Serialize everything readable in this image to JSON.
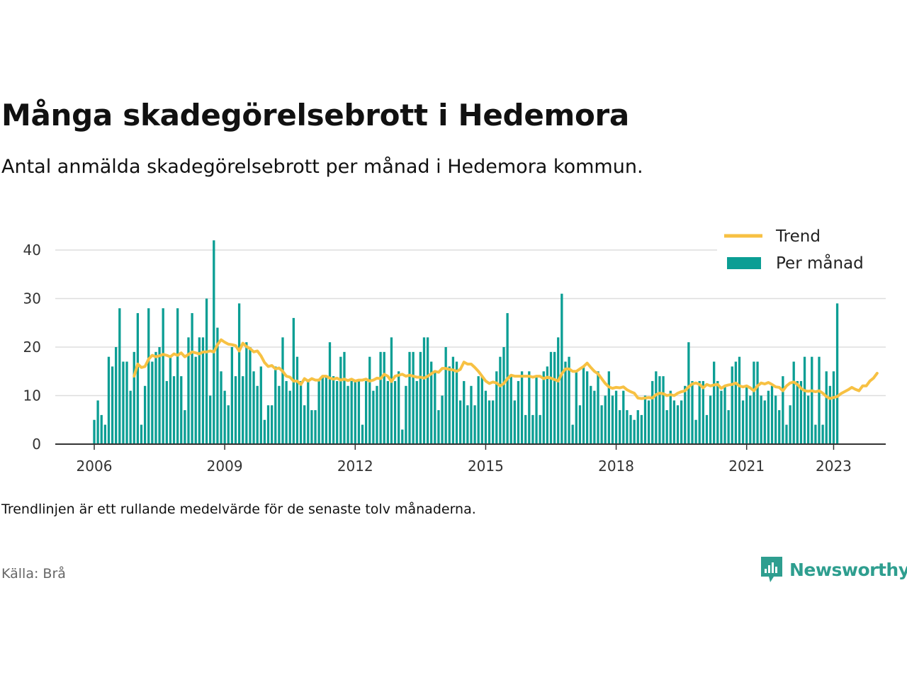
{
  "title": "Många skadegörelsebrott i Hedemora",
  "subtitle": "Antal anmälda skadegörelsebrott per månad i Hedemora kommun.",
  "note": "Trendlinjen är ett rullande medelvärde för de senaste tolv månaderna.",
  "source": "Källa: Brå",
  "brand": "Newsworthy",
  "colors": {
    "bars": "#0b9e94",
    "trend": "#f7c143",
    "grid": "#dddddd",
    "axis": "#333333",
    "brand": "#2e9e8f"
  },
  "chart_data": {
    "type": "bar",
    "start": "2006-01",
    "x_ticks": [
      "2006",
      "2009",
      "2012",
      "2015",
      "2018",
      "2021",
      "2023"
    ],
    "ylim": [
      0,
      45
    ],
    "y_ticks": [
      0,
      10,
      20,
      30,
      40
    ],
    "grid": true,
    "legend_position": "top-right",
    "series": [
      {
        "name": "Per månad",
        "kind": "bar",
        "values": [
          5,
          9,
          6,
          4,
          18,
          16,
          20,
          28,
          17,
          17,
          11,
          19,
          27,
          4,
          12,
          28,
          17,
          19,
          20,
          28,
          13,
          18,
          14,
          28,
          14,
          7,
          22,
          27,
          18,
          22,
          22,
          30,
          10,
          42,
          24,
          15,
          11,
          8,
          20,
          14,
          29,
          14,
          21,
          20,
          15,
          12,
          16,
          5,
          8,
          8,
          16,
          12,
          22,
          13,
          11,
          26,
          18,
          13,
          8,
          13,
          7,
          7,
          13,
          14,
          14,
          21,
          14,
          13,
          18,
          19,
          12,
          13,
          13,
          13,
          4,
          13,
          18,
          11,
          12,
          19,
          19,
          13,
          22,
          13,
          15,
          3,
          12,
          19,
          19,
          13,
          19,
          22,
          22,
          17,
          15,
          7,
          10,
          20,
          16,
          18,
          17,
          9,
          13,
          8,
          12,
          8,
          14,
          14,
          11,
          9,
          9,
          15,
          18,
          20,
          27,
          14,
          9,
          13,
          15,
          6,
          15,
          6,
          14,
          6,
          15,
          16,
          19,
          19,
          22,
          31,
          17,
          18,
          4,
          15,
          8,
          16,
          15,
          12,
          11,
          15,
          8,
          10,
          15,
          10,
          11,
          7,
          11,
          7,
          6,
          5,
          7,
          6,
          10,
          9,
          13,
          15,
          14,
          14,
          7,
          11,
          9,
          8,
          9,
          12,
          21,
          13,
          5,
          13,
          13,
          6,
          10,
          17,
          13,
          11,
          12,
          7,
          16,
          17,
          18,
          9,
          12,
          10,
          17,
          17,
          10,
          9,
          11,
          12,
          10,
          7,
          14,
          4,
          8,
          17,
          13,
          13,
          18,
          10,
          18,
          4,
          18,
          4,
          15,
          12,
          15,
          29
        ]
      },
      {
        "name": "Trend",
        "kind": "line",
        "start_index": 11,
        "values": [
          14.0,
          16.5,
          15.8,
          16.0,
          17.5,
          18.3,
          18.0,
          18.2,
          18.5,
          18.3,
          18.0,
          18.6,
          18.3,
          18.8,
          18.0,
          18.5,
          19.0,
          18.8,
          18.6,
          19.0,
          19.0,
          19.2,
          19.0,
          20.5,
          21.5,
          21.0,
          20.6,
          20.5,
          20.3,
          19.2,
          20.8,
          20.1,
          19.7,
          19.0,
          19.2,
          18.2,
          16.8,
          16.0,
          16.2,
          15.5,
          15.7,
          15.0,
          14.0,
          13.8,
          13.0,
          13.0,
          12.3,
          13.5,
          13.0,
          13.5,
          13.2,
          13.2,
          14.0,
          14.0,
          13.6,
          13.4,
          13.6,
          13.2,
          13.4,
          13.1,
          13.4,
          13.0,
          13.2,
          13.2,
          13.4,
          13.0,
          13.2,
          13.6,
          13.5,
          14.4,
          14.0,
          12.9,
          14.0,
          14.2,
          14.4,
          14.0,
          14.2,
          14.0,
          13.8,
          13.8,
          13.6,
          14.0,
          14.5,
          15.0,
          14.8,
          15.6,
          15.6,
          15.4,
          15.3,
          15.0,
          15.4,
          16.9,
          16.5,
          16.5,
          15.8,
          15.0,
          14.0,
          13.0,
          12.5,
          12.8,
          12.6,
          12.0,
          12.5,
          13.5,
          14.2,
          14.0,
          14.0,
          14.0,
          14.0,
          14.0,
          13.8,
          14.0,
          14.0,
          13.5,
          13.8,
          13.6,
          13.3,
          13.0,
          14.5,
          15.5,
          15.5,
          15.0,
          15.0,
          15.5,
          16.0,
          16.7,
          15.8,
          15.0,
          14.5,
          13.5,
          12.5,
          11.8,
          11.5,
          11.7,
          11.6,
          11.8,
          11.2,
          10.8,
          10.5,
          9.5,
          9.4,
          9.5,
          9.6,
          9.5,
          10.2,
          10.5,
          10.4,
          10.0,
          10.2,
          10.0,
          10.5,
          10.8,
          11.0,
          11.8,
          12.4,
          12.6,
          12.3,
          11.6,
          12.3,
          12.0,
          12.2,
          12.3,
          11.5,
          12.0,
          12.2,
          12.3,
          12.6,
          12.0,
          11.8,
          12.0,
          11.6,
          11.0,
          12.0,
          12.6,
          12.4,
          12.7,
          12.3,
          11.8,
          11.7,
          11.0,
          12.0,
          12.6,
          12.8,
          12.3,
          11.5,
          11.0,
          10.9,
          11.0,
          10.8,
          11.0,
          10.5,
          9.8,
          9.4,
          9.6,
          9.8,
          10.4,
          10.8,
          11.2,
          11.7,
          11.3,
          11.0,
          12.0,
          12.0,
          13.0,
          13.6,
          14.6
        ]
      }
    ]
  }
}
